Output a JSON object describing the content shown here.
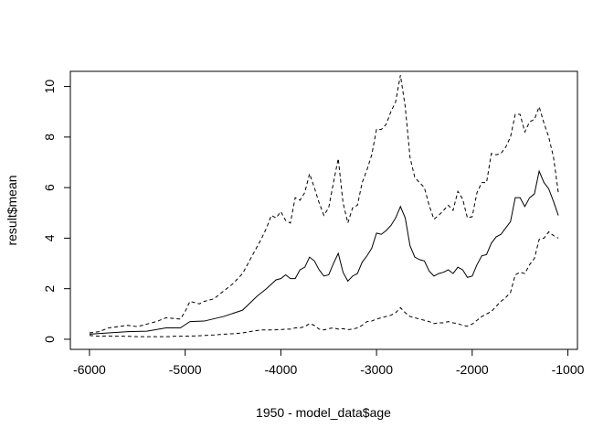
{
  "chart_data": {
    "type": "line",
    "title": "",
    "xlabel": "1950 - model_data$age",
    "ylabel": "result$mean",
    "xlim": [
      -6200,
      -900
    ],
    "ylim": [
      -0.4,
      10.6
    ],
    "grid": false,
    "legend": "none",
    "x_ticks": [
      -6000,
      -5000,
      -4000,
      -3000,
      -2000,
      -1000
    ],
    "x_tick_labels": [
      "-6000",
      "-5000",
      "-4000",
      "-3000",
      "-2000",
      "-1000"
    ],
    "y_ticks": [
      0,
      2,
      4,
      6,
      8,
      10
    ],
    "y_tick_labels": [
      "0",
      "2",
      "4",
      "6",
      "8",
      "10"
    ],
    "series": [
      {
        "key": "mean",
        "line_style": "solid",
        "points": [
          [
            -6000,
            0.2
          ],
          [
            -5800,
            0.25
          ],
          [
            -5600,
            0.3
          ],
          [
            -5400,
            0.32
          ],
          [
            -5200,
            0.45
          ],
          [
            -5050,
            0.45
          ],
          [
            -4950,
            0.7
          ],
          [
            -4800,
            0.72
          ],
          [
            -4600,
            0.9
          ],
          [
            -4400,
            1.15
          ],
          [
            -4250,
            1.7
          ],
          [
            -4150,
            2.0
          ],
          [
            -4050,
            2.35
          ],
          [
            -4000,
            2.4
          ],
          [
            -3950,
            2.55
          ],
          [
            -3900,
            2.4
          ],
          [
            -3850,
            2.4
          ],
          [
            -3800,
            2.75
          ],
          [
            -3750,
            2.85
          ],
          [
            -3700,
            3.25
          ],
          [
            -3650,
            3.1
          ],
          [
            -3600,
            2.75
          ],
          [
            -3550,
            2.5
          ],
          [
            -3500,
            2.55
          ],
          [
            -3450,
            3.0
          ],
          [
            -3400,
            3.4
          ],
          [
            -3350,
            2.65
          ],
          [
            -3300,
            2.3
          ],
          [
            -3250,
            2.5
          ],
          [
            -3200,
            2.6
          ],
          [
            -3150,
            3.05
          ],
          [
            -3100,
            3.3
          ],
          [
            -3050,
            3.6
          ],
          [
            -3000,
            4.2
          ],
          [
            -2950,
            4.15
          ],
          [
            -2900,
            4.3
          ],
          [
            -2850,
            4.5
          ],
          [
            -2800,
            4.8
          ],
          [
            -2750,
            5.25
          ],
          [
            -2700,
            4.8
          ],
          [
            -2650,
            3.7
          ],
          [
            -2600,
            3.25
          ],
          [
            -2550,
            3.15
          ],
          [
            -2500,
            3.1
          ],
          [
            -2450,
            2.7
          ],
          [
            -2400,
            2.5
          ],
          [
            -2350,
            2.6
          ],
          [
            -2300,
            2.65
          ],
          [
            -2250,
            2.75
          ],
          [
            -2200,
            2.6
          ],
          [
            -2150,
            2.85
          ],
          [
            -2100,
            2.75
          ],
          [
            -2050,
            2.45
          ],
          [
            -2000,
            2.5
          ],
          [
            -1950,
            2.95
          ],
          [
            -1900,
            3.3
          ],
          [
            -1850,
            3.35
          ],
          [
            -1800,
            3.8
          ],
          [
            -1750,
            4.05
          ],
          [
            -1700,
            4.15
          ],
          [
            -1650,
            4.4
          ],
          [
            -1600,
            4.65
          ],
          [
            -1550,
            5.6
          ],
          [
            -1500,
            5.6
          ],
          [
            -1450,
            5.25
          ],
          [
            -1400,
            5.6
          ],
          [
            -1350,
            5.75
          ],
          [
            -1300,
            6.65
          ],
          [
            -1250,
            6.2
          ],
          [
            -1200,
            5.95
          ],
          [
            -1150,
            5.45
          ],
          [
            -1100,
            4.9
          ]
        ]
      },
      {
        "key": "upper",
        "line_style": "dashed",
        "points": [
          [
            -6000,
            0.25
          ],
          [
            -5900,
            0.3
          ],
          [
            -5800,
            0.45
          ],
          [
            -5700,
            0.5
          ],
          [
            -5600,
            0.55
          ],
          [
            -5500,
            0.5
          ],
          [
            -5400,
            0.6
          ],
          [
            -5300,
            0.7
          ],
          [
            -5200,
            0.85
          ],
          [
            -5050,
            0.8
          ],
          [
            -5000,
            1.1
          ],
          [
            -4950,
            1.5
          ],
          [
            -4900,
            1.45
          ],
          [
            -4850,
            1.4
          ],
          [
            -4800,
            1.5
          ],
          [
            -4700,
            1.6
          ],
          [
            -4600,
            1.9
          ],
          [
            -4500,
            2.2
          ],
          [
            -4400,
            2.6
          ],
          [
            -4300,
            3.3
          ],
          [
            -4200,
            4.0
          ],
          [
            -4150,
            4.4
          ],
          [
            -4100,
            4.9
          ],
          [
            -4050,
            4.8
          ],
          [
            -4000,
            5.05
          ],
          [
            -3950,
            4.7
          ],
          [
            -3900,
            4.6
          ],
          [
            -3850,
            5.6
          ],
          [
            -3800,
            5.5
          ],
          [
            -3750,
            5.8
          ],
          [
            -3700,
            6.55
          ],
          [
            -3650,
            6.0
          ],
          [
            -3600,
            5.4
          ],
          [
            -3550,
            4.9
          ],
          [
            -3500,
            5.2
          ],
          [
            -3450,
            6.2
          ],
          [
            -3400,
            7.15
          ],
          [
            -3350,
            5.4
          ],
          [
            -3300,
            4.6
          ],
          [
            -3250,
            5.2
          ],
          [
            -3200,
            5.3
          ],
          [
            -3150,
            6.2
          ],
          [
            -3100,
            6.7
          ],
          [
            -3050,
            7.3
          ],
          [
            -3000,
            8.3
          ],
          [
            -2950,
            8.3
          ],
          [
            -2900,
            8.5
          ],
          [
            -2850,
            9.0
          ],
          [
            -2800,
            9.4
          ],
          [
            -2750,
            10.45
          ],
          [
            -2700,
            9.2
          ],
          [
            -2650,
            7.2
          ],
          [
            -2600,
            6.4
          ],
          [
            -2550,
            6.2
          ],
          [
            -2500,
            6.0
          ],
          [
            -2450,
            5.3
          ],
          [
            -2400,
            4.75
          ],
          [
            -2350,
            4.9
          ],
          [
            -2300,
            5.1
          ],
          [
            -2250,
            5.3
          ],
          [
            -2200,
            5.1
          ],
          [
            -2150,
            5.85
          ],
          [
            -2100,
            5.55
          ],
          [
            -2050,
            4.8
          ],
          [
            -2000,
            4.85
          ],
          [
            -1950,
            5.8
          ],
          [
            -1900,
            6.2
          ],
          [
            -1850,
            6.2
          ],
          [
            -1800,
            7.35
          ],
          [
            -1750,
            7.3
          ],
          [
            -1700,
            7.35
          ],
          [
            -1650,
            7.6
          ],
          [
            -1600,
            8.0
          ],
          [
            -1550,
            8.9
          ],
          [
            -1500,
            8.9
          ],
          [
            -1450,
            8.2
          ],
          [
            -1400,
            8.6
          ],
          [
            -1350,
            8.7
          ],
          [
            -1300,
            9.2
          ],
          [
            -1250,
            8.55
          ],
          [
            -1200,
            8.0
          ],
          [
            -1150,
            7.2
          ],
          [
            -1100,
            5.8
          ]
        ]
      },
      {
        "key": "lower",
        "line_style": "dashed",
        "points": [
          [
            -6000,
            0.15
          ],
          [
            -5900,
            0.12
          ],
          [
            -5800,
            0.13
          ],
          [
            -5700,
            0.12
          ],
          [
            -5600,
            0.12
          ],
          [
            -5500,
            0.1
          ],
          [
            -5400,
            0.1
          ],
          [
            -5300,
            0.1
          ],
          [
            -5200,
            0.1
          ],
          [
            -5100,
            0.12
          ],
          [
            -5000,
            0.12
          ],
          [
            -4900,
            0.13
          ],
          [
            -4800,
            0.15
          ],
          [
            -4700,
            0.17
          ],
          [
            -4600,
            0.2
          ],
          [
            -4500,
            0.22
          ],
          [
            -4400,
            0.25
          ],
          [
            -4300,
            0.32
          ],
          [
            -4200,
            0.37
          ],
          [
            -4100,
            0.37
          ],
          [
            -4000,
            0.38
          ],
          [
            -3950,
            0.4
          ],
          [
            -3900,
            0.4
          ],
          [
            -3850,
            0.45
          ],
          [
            -3800,
            0.45
          ],
          [
            -3750,
            0.5
          ],
          [
            -3700,
            0.62
          ],
          [
            -3650,
            0.55
          ],
          [
            -3600,
            0.4
          ],
          [
            -3550,
            0.37
          ],
          [
            -3500,
            0.42
          ],
          [
            -3450,
            0.45
          ],
          [
            -3400,
            0.4
          ],
          [
            -3350,
            0.42
          ],
          [
            -3300,
            0.38
          ],
          [
            -3250,
            0.4
          ],
          [
            -3200,
            0.45
          ],
          [
            -3150,
            0.55
          ],
          [
            -3100,
            0.7
          ],
          [
            -3050,
            0.72
          ],
          [
            -3000,
            0.8
          ],
          [
            -2950,
            0.85
          ],
          [
            -2900,
            0.9
          ],
          [
            -2850,
            0.95
          ],
          [
            -2800,
            1.05
          ],
          [
            -2750,
            1.25
          ],
          [
            -2700,
            1.05
          ],
          [
            -2650,
            0.9
          ],
          [
            -2600,
            0.85
          ],
          [
            -2550,
            0.8
          ],
          [
            -2500,
            0.75
          ],
          [
            -2450,
            0.7
          ],
          [
            -2400,
            0.62
          ],
          [
            -2350,
            0.65
          ],
          [
            -2300,
            0.65
          ],
          [
            -2250,
            0.7
          ],
          [
            -2200,
            0.65
          ],
          [
            -2150,
            0.62
          ],
          [
            -2100,
            0.55
          ],
          [
            -2050,
            0.52
          ],
          [
            -2000,
            0.6
          ],
          [
            -1950,
            0.75
          ],
          [
            -1900,
            0.9
          ],
          [
            -1850,
            1.0
          ],
          [
            -1800,
            1.1
          ],
          [
            -1750,
            1.3
          ],
          [
            -1700,
            1.5
          ],
          [
            -1650,
            1.65
          ],
          [
            -1600,
            1.85
          ],
          [
            -1550,
            2.55
          ],
          [
            -1500,
            2.65
          ],
          [
            -1450,
            2.6
          ],
          [
            -1400,
            2.95
          ],
          [
            -1350,
            3.2
          ],
          [
            -1300,
            3.95
          ],
          [
            -1250,
            4.0
          ],
          [
            -1200,
            4.25
          ],
          [
            -1150,
            4.1
          ],
          [
            -1100,
            4.0
          ]
        ]
      }
    ]
  }
}
